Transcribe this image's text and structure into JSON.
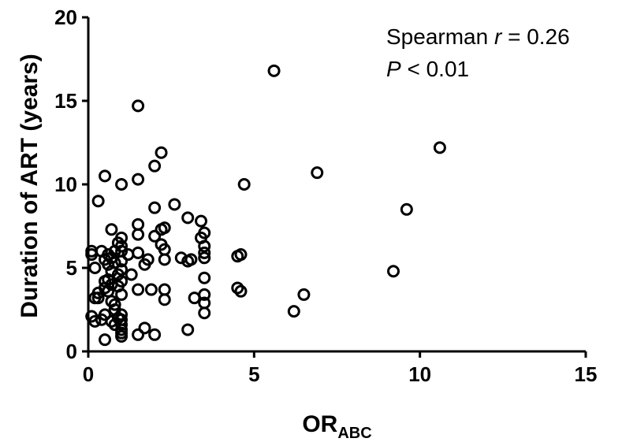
{
  "chart_data": {
    "type": "scatter",
    "title": "",
    "xlabel": "OR",
    "xlabel_subscript": "ABC",
    "ylabel": "Duration of ART (years)",
    "xlim": [
      0,
      15
    ],
    "ylim": [
      0,
      20
    ],
    "x_ticks": [
      0,
      5,
      10,
      15
    ],
    "y_ticks": [
      0,
      5,
      10,
      15,
      20
    ],
    "grid": false,
    "annotation": {
      "line1_prefix": "Spearman ",
      "line1_italic": "r",
      "line1_suffix": " = 0.26",
      "line2_italic": "P",
      "line2_suffix": " < 0.01"
    },
    "marker": {
      "shape": "open-circle",
      "color": "#000000"
    },
    "points": [
      [
        0.1,
        6.0
      ],
      [
        0.1,
        5.8
      ],
      [
        0.2,
        5.0
      ],
      [
        0.2,
        3.2
      ],
      [
        0.1,
        2.1
      ],
      [
        0.2,
        1.8
      ],
      [
        0.3,
        9.0
      ],
      [
        0.3,
        3.5
      ],
      [
        0.3,
        3.2
      ],
      [
        0.4,
        6.0
      ],
      [
        0.4,
        1.9
      ],
      [
        0.5,
        10.5
      ],
      [
        0.5,
        5.5
      ],
      [
        0.5,
        4.2
      ],
      [
        0.5,
        3.8
      ],
      [
        0.5,
        2.2
      ],
      [
        0.5,
        0.7
      ],
      [
        0.6,
        5.8
      ],
      [
        0.6,
        5.2
      ],
      [
        0.6,
        4.3
      ],
      [
        0.6,
        3.6
      ],
      [
        0.7,
        7.3
      ],
      [
        0.7,
        5.6
      ],
      [
        0.7,
        4.8
      ],
      [
        0.7,
        4.0
      ],
      [
        0.7,
        3.0
      ],
      [
        0.7,
        1.8
      ],
      [
        0.8,
        6.0
      ],
      [
        0.8,
        5.3
      ],
      [
        0.8,
        2.8
      ],
      [
        0.8,
        2.5
      ],
      [
        0.8,
        1.6
      ],
      [
        0.9,
        6.5
      ],
      [
        0.9,
        4.6
      ],
      [
        0.9,
        3.9
      ],
      [
        0.9,
        2.0
      ],
      [
        1.0,
        10.0
      ],
      [
        1.0,
        6.8
      ],
      [
        1.0,
        6.3
      ],
      [
        1.0,
        6.0
      ],
      [
        1.0,
        5.4
      ],
      [
        1.0,
        4.9
      ],
      [
        1.0,
        4.2
      ],
      [
        1.0,
        3.4
      ],
      [
        1.0,
        2.2
      ],
      [
        1.0,
        1.9
      ],
      [
        1.0,
        1.6
      ],
      [
        1.0,
        1.3
      ],
      [
        1.0,
        1.1
      ],
      [
        1.0,
        0.9
      ],
      [
        1.2,
        5.8
      ],
      [
        1.3,
        4.6
      ],
      [
        1.5,
        14.7
      ],
      [
        1.5,
        10.3
      ],
      [
        1.5,
        7.6
      ],
      [
        1.5,
        7.0
      ],
      [
        1.5,
        5.9
      ],
      [
        1.5,
        3.7
      ],
      [
        1.5,
        1.0
      ],
      [
        1.7,
        5.2
      ],
      [
        1.7,
        1.4
      ],
      [
        1.8,
        5.5
      ],
      [
        1.9,
        3.7
      ],
      [
        2.0,
        11.1
      ],
      [
        2.0,
        8.6
      ],
      [
        2.0,
        6.9
      ],
      [
        2.0,
        1.0
      ],
      [
        2.2,
        11.9
      ],
      [
        2.2,
        7.3
      ],
      [
        2.2,
        6.4
      ],
      [
        2.3,
        7.4
      ],
      [
        2.3,
        6.1
      ],
      [
        2.3,
        5.5
      ],
      [
        2.3,
        3.7
      ],
      [
        2.3,
        3.1
      ],
      [
        2.6,
        8.8
      ],
      [
        2.8,
        5.6
      ],
      [
        3.0,
        8.0
      ],
      [
        3.0,
        5.4
      ],
      [
        3.0,
        1.3
      ],
      [
        3.1,
        5.5
      ],
      [
        3.2,
        3.2
      ],
      [
        3.4,
        7.8
      ],
      [
        3.4,
        6.8
      ],
      [
        3.5,
        7.1
      ],
      [
        3.5,
        6.3
      ],
      [
        3.5,
        5.9
      ],
      [
        3.5,
        5.6
      ],
      [
        3.5,
        4.4
      ],
      [
        3.5,
        3.4
      ],
      [
        3.5,
        2.9
      ],
      [
        3.5,
        2.3
      ],
      [
        4.5,
        5.7
      ],
      [
        4.5,
        3.8
      ],
      [
        4.6,
        5.8
      ],
      [
        4.6,
        3.6
      ],
      [
        4.7,
        10.0
      ],
      [
        5.6,
        16.8
      ],
      [
        6.2,
        2.4
      ],
      [
        6.5,
        3.4
      ],
      [
        6.9,
        10.7
      ],
      [
        9.2,
        4.8
      ],
      [
        9.6,
        8.5
      ],
      [
        10.6,
        12.2
      ]
    ]
  }
}
